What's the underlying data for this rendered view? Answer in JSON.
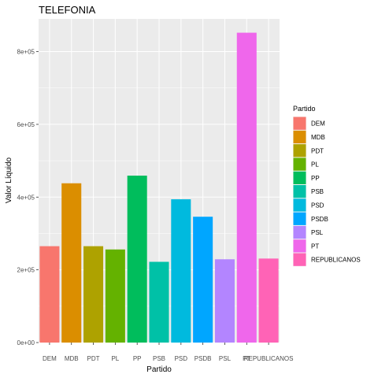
{
  "chart_data": {
    "type": "bar",
    "title": "TELEFONIA",
    "xlabel": "Partido",
    "ylabel": "Valor Líquido",
    "categories": [
      "DEM",
      "MDB",
      "PDT",
      "PL",
      "PP",
      "PSB",
      "PSD",
      "PSDB",
      "PSL",
      "PT",
      "REPUBLICANOS"
    ],
    "values": [
      265000,
      438000,
      265000,
      256000,
      459000,
      222000,
      394000,
      346000,
      229000,
      852000,
      231000
    ],
    "colors": [
      "#F8766D",
      "#DB8E00",
      "#AEA200",
      "#64B200",
      "#00BD5C",
      "#00C1A7",
      "#00BADE",
      "#00A6FF",
      "#B385FF",
      "#EF67EB",
      "#FF63B6"
    ],
    "ylim": [
      0,
      890000
    ],
    "yticks": [
      0,
      200000,
      400000,
      600000,
      800000
    ],
    "ytick_labels": [
      "0e+00",
      "2e+05",
      "4e+05",
      "6e+05",
      "8e+05"
    ],
    "grid": true,
    "legend": {
      "title": "Partido",
      "placement": "right",
      "entries": [
        "DEM",
        "MDB",
        "PDT",
        "PL",
        "PP",
        "PSB",
        "PSD",
        "PSDB",
        "PSL",
        "PT",
        "REPUBLICANOS"
      ]
    },
    "panel_background": "#EBEBEB"
  }
}
